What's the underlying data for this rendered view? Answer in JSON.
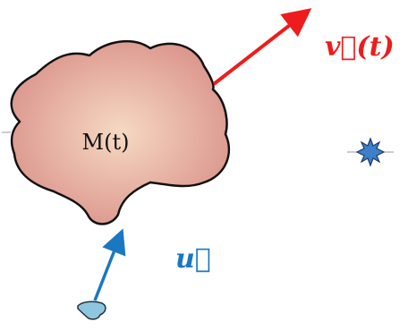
{
  "body": {
    "label": "M(t)"
  },
  "velocity": {
    "label": "v⃗(t)",
    "color": "#ee1c1c"
  },
  "u_vector": {
    "label": "u⃗",
    "color": "#1a78c2"
  },
  "colors": {
    "body_fill_center": "#f6d9c2",
    "body_fill_edge": "#d99088",
    "outline": "#111111",
    "star": "#3d7fc8",
    "drop": "#8ec6de"
  },
  "icons": [
    "starburst-icon",
    "droplet-icon"
  ]
}
